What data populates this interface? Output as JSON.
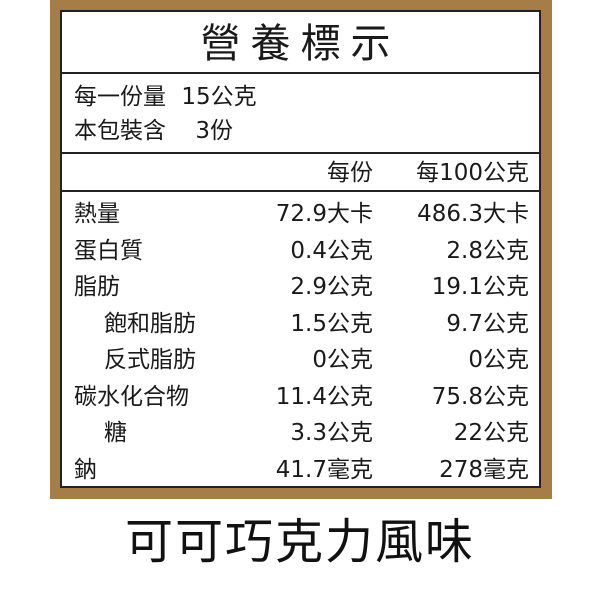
{
  "label": {
    "title": "營養標示",
    "serving_size_label": "每一份量",
    "serving_size_value": "15公克",
    "servings_label": "本包裝含",
    "servings_value": "3份",
    "col_per_serving": "每份",
    "col_per_100g": "每100公克",
    "rows": [
      {
        "name": "熱量",
        "per_serving": "72.9大卡",
        "per_100g": "486.3大卡",
        "indent": false
      },
      {
        "name": "蛋白質",
        "per_serving": "0.4公克",
        "per_100g": "2.8公克",
        "indent": false
      },
      {
        "name": "脂肪",
        "per_serving": "2.9公克",
        "per_100g": "19.1公克",
        "indent": false
      },
      {
        "name": "飽和脂肪",
        "per_serving": "1.5公克",
        "per_100g": "9.7公克",
        "indent": true
      },
      {
        "name": "反式脂肪",
        "per_serving": "0公克",
        "per_100g": "0公克",
        "indent": true
      },
      {
        "name": "碳水化合物",
        "per_serving": "11.4公克",
        "per_100g": "75.8公克",
        "indent": false
      },
      {
        "name": "糖",
        "per_serving": "3.3公克",
        "per_100g": "22公克",
        "indent": true
      },
      {
        "name": "鈉",
        "per_serving": "41.7毫克",
        "per_100g": "278毫克",
        "indent": false
      }
    ]
  },
  "caption": "可可巧克力風味",
  "colors": {
    "frame": "#a67c47",
    "rule": "#222222"
  }
}
